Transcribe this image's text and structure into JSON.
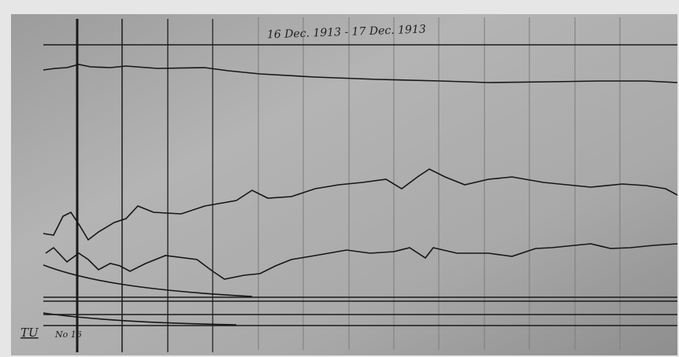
{
  "title": "16 Dec. 1913 - 17 Dec. 1913",
  "mark": "TU",
  "sheet": "No 16"
}
